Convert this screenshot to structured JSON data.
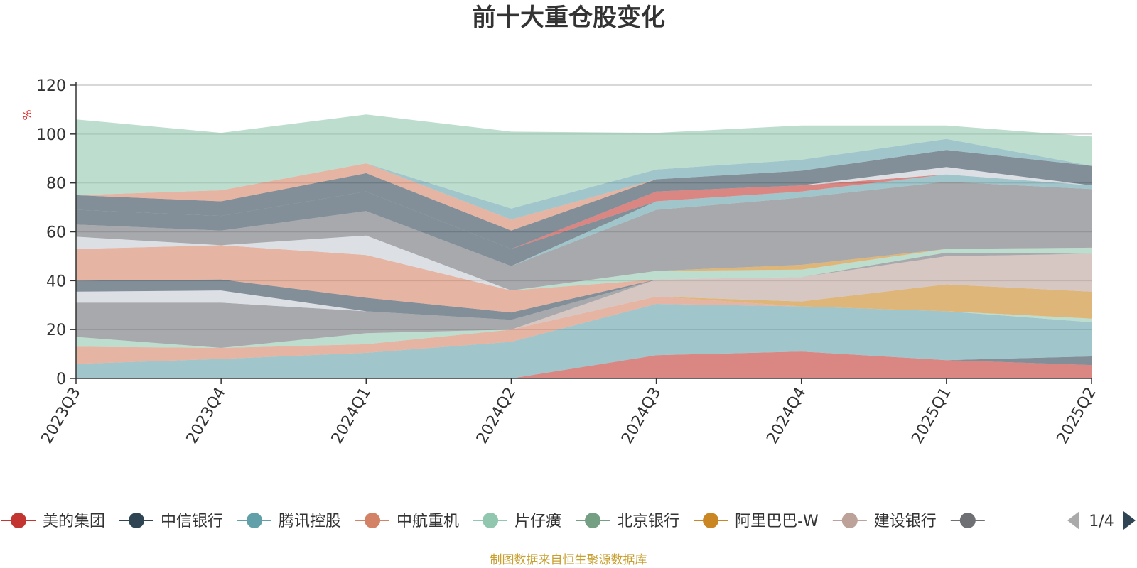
{
  "colors": {
    "axis": "#333333",
    "grid": "#cccccc",
    "title": "#333333",
    "unit": "#e02020",
    "source": "#c8a032",
    "pager_active": "#2f4554",
    "pager_inactive": "#aaaaaa"
  },
  "chart_data": {
    "type": "area",
    "title": "前十大重仓股变化",
    "ylabel": "%",
    "ylim": [
      0,
      120
    ],
    "yticks": [
      0,
      20,
      40,
      60,
      80,
      100,
      120
    ],
    "grid": true,
    "stacked": true,
    "categories": [
      "2023Q3",
      "2023Q4",
      "2024Q1",
      "2024Q2",
      "2024Q3",
      "2024Q4",
      "2025Q1",
      "2025Q2"
    ],
    "series": [
      {
        "name": "美的集团",
        "color": "#c23531",
        "values": [
          0,
          0,
          0,
          0,
          9.5,
          11,
          7.5,
          5.5
        ]
      },
      {
        "name": "中信银行",
        "color": "#2f4554",
        "values": [
          0,
          0,
          0,
          0,
          0,
          0,
          0,
          3.5
        ]
      },
      {
        "name": "腾讯控股",
        "color": "#61a0a8",
        "values": [
          6,
          8,
          10.5,
          15,
          21,
          18.5,
          20,
          14
        ]
      },
      {
        "name": "中航重机",
        "color": "#d48265",
        "values": [
          7,
          4.5,
          3.5,
          5,
          3,
          0,
          0,
          0
        ]
      },
      {
        "name": "片仔癀",
        "color": "#91c7ae",
        "values": [
          4,
          0,
          4.5,
          0,
          0,
          0,
          0,
          1.5
        ]
      },
      {
        "name": "北京银行",
        "color": "#749f83",
        "values": [
          0,
          0,
          0,
          0,
          0,
          0,
          0,
          0
        ]
      },
      {
        "name": "阿里巴巴-W",
        "color": "#ca8622",
        "values": [
          0,
          0,
          0,
          0,
          0,
          2,
          11,
          11
        ]
      },
      {
        "name": "建设银行",
        "color": "#bda29a",
        "values": [
          0,
          0,
          0,
          0,
          7,
          10,
          11.5,
          15.5
        ]
      },
      {
        "name": "",
        "color": "#6e7074",
        "values": [
          14,
          18.5,
          9,
          4,
          0,
          0,
          1.5,
          0
        ]
      },
      {
        "name": "",
        "color": "#c4ccd3",
        "values": [
          4.5,
          5,
          0,
          0,
          0,
          0,
          0,
          0
        ]
      },
      {
        "name": "",
        "color": "#2f4554",
        "values": [
          4.5,
          4.5,
          5.5,
          3,
          0,
          0,
          0,
          0
        ]
      },
      {
        "name": "",
        "color": "#d48265",
        "values": [
          13,
          14,
          17.5,
          9,
          0,
          0,
          0,
          0
        ]
      },
      {
        "name": "",
        "color": "#91c7ae",
        "values": [
          0,
          0,
          0,
          0,
          3.5,
          3,
          1.5,
          2.5
        ]
      },
      {
        "name": "",
        "color": "#ca8622",
        "values": [
          0,
          0,
          0,
          0,
          0,
          2,
          0,
          0
        ]
      },
      {
        "name": "",
        "color": "#c4ccd3",
        "values": [
          5,
          0,
          8,
          0,
          0,
          0,
          0,
          0
        ]
      },
      {
        "name": "",
        "color": "#6e7074",
        "values": [
          5,
          6,
          10,
          10,
          25,
          27.5,
          27.5,
          24
        ]
      },
      {
        "name": "",
        "color": "#61a0a8",
        "values": [
          0,
          0,
          0,
          0,
          3.5,
          2.5,
          3,
          1.5
        ]
      },
      {
        "name": "",
        "color": "#2f4554",
        "values": [
          6,
          6,
          8,
          7,
          0,
          0,
          0,
          0
        ]
      },
      {
        "name": "",
        "color": "#c23531",
        "values": [
          0,
          0,
          0,
          0,
          4,
          2.5,
          0,
          0
        ]
      },
      {
        "name": "",
        "color": "#c4ccd3",
        "values": [
          0,
          0,
          0,
          0,
          0,
          0,
          3,
          0
        ]
      },
      {
        "name": "",
        "color": "#2f4554",
        "values": [
          6,
          6,
          7.5,
          7.5,
          5,
          6,
          7,
          8
        ]
      },
      {
        "name": "",
        "color": "#d48265",
        "values": [
          0,
          4.5,
          4,
          4.5,
          0,
          0,
          0,
          0
        ]
      },
      {
        "name": "",
        "color": "#61a0a8",
        "values": [
          0,
          0,
          0,
          4.5,
          4,
          4.5,
          4.5,
          0
        ]
      },
      {
        "name": "",
        "color": "#91c7ae",
        "values": [
          31,
          23.5,
          20,
          31.5,
          15,
          14,
          5.5,
          12
        ]
      }
    ]
  },
  "legend": {
    "items": [
      {
        "label": "美的集团",
        "color": "#c23531"
      },
      {
        "label": "中信银行",
        "color": "#2f4554"
      },
      {
        "label": "腾讯控股",
        "color": "#61a0a8"
      },
      {
        "label": "中航重机",
        "color": "#d48265"
      },
      {
        "label": "片仔癀",
        "color": "#91c7ae"
      },
      {
        "label": "北京银行",
        "color": "#749f83"
      },
      {
        "label": "阿里巴巴-W",
        "color": "#ca8622"
      },
      {
        "label": "建设银行",
        "color": "#bda29a"
      },
      {
        "label": "",
        "color": "#6e7074"
      }
    ],
    "page": "1/4"
  },
  "source": "制图数据来自恒生聚源数据库"
}
